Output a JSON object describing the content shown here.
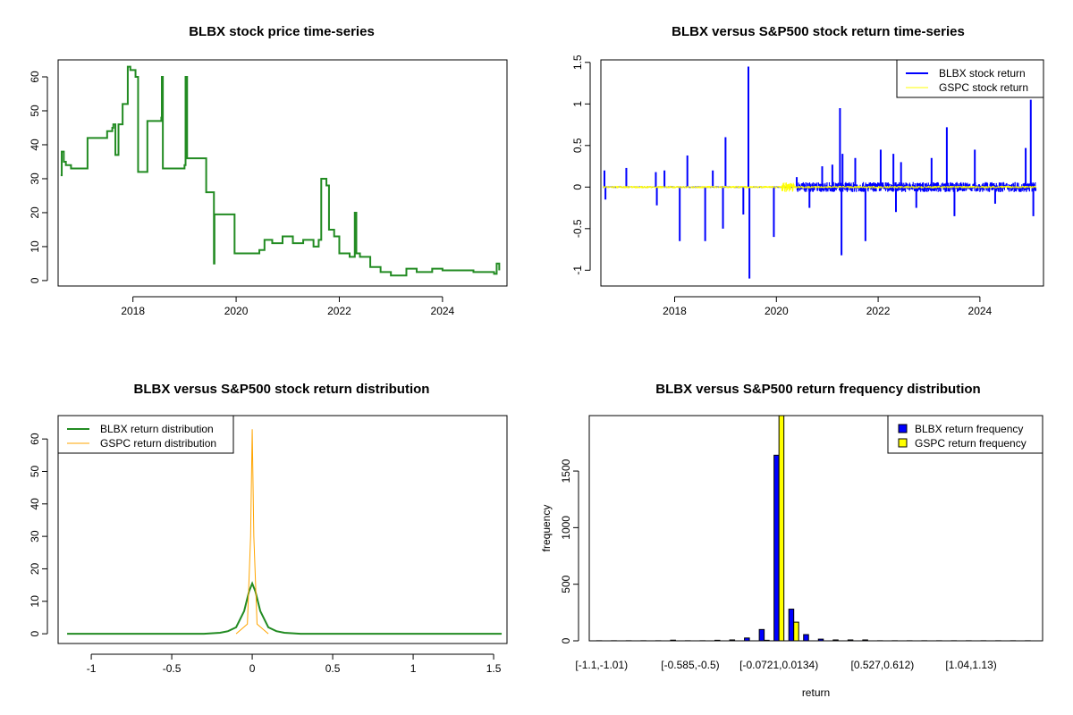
{
  "chart_data": [
    {
      "type": "line",
      "title": "BLBX stock price time-series",
      "xlabel": "",
      "ylabel": "",
      "xlim": [
        2016.55,
        2025.25
      ],
      "ylim": [
        -1.6,
        65
      ],
      "xticks": [
        2018,
        2020,
        2022,
        2024
      ],
      "yticks": [
        0,
        10,
        20,
        30,
        40,
        50,
        60
      ],
      "color": "#228B22",
      "x": [
        2016.6,
        2016.62,
        2016.66,
        2016.7,
        2016.8,
        2017.1,
        2017.12,
        2017.45,
        2017.5,
        2017.6,
        2017.62,
        2017.64,
        2017.66,
        2017.72,
        2017.8,
        2017.9,
        2017.95,
        2018.05,
        2018.1,
        2018.15,
        2018.28,
        2018.3,
        2018.55,
        2018.56,
        2018.58,
        2018.6,
        2019.0,
        2019.02,
        2019.05,
        2019.4,
        2019.42,
        2019.55,
        2019.57,
        2019.58,
        2019.96,
        2019.97,
        2020.4,
        2020.45,
        2020.55,
        2020.7,
        2020.9,
        2021.1,
        2021.3,
        2021.5,
        2021.6,
        2021.65,
        2021.75,
        2021.8,
        2021.9,
        2022.0,
        2022.2,
        2022.3,
        2022.33,
        2022.4,
        2022.6,
        2022.8,
        2023.0,
        2023.3,
        2023.5,
        2023.8,
        2024.0,
        2024.3,
        2024.6,
        2025.0,
        2025.05,
        2025.1
      ],
      "y": [
        31,
        38,
        35,
        34,
        33,
        33,
        42,
        42,
        44,
        45,
        46,
        46,
        37,
        46,
        52,
        63,
        62,
        60,
        32,
        32,
        47,
        47,
        48,
        60,
        33,
        33,
        34,
        60,
        36,
        36,
        26,
        26,
        5,
        19.5,
        19.5,
        8,
        8,
        9,
        12,
        11,
        13,
        11,
        12,
        10,
        12,
        30,
        28,
        15,
        13,
        8,
        7,
        20,
        8,
        7,
        4,
        2.5,
        1.5,
        3.5,
        2.5,
        3.5,
        3,
        3,
        2.5,
        2,
        5,
        3
      ]
    },
    {
      "type": "line",
      "title": "BLBX versus S&P500 stock return time-series",
      "xlabel": "",
      "ylabel": "",
      "xlim": [
        2016.55,
        2025.25
      ],
      "ylim": [
        -1.19,
        1.53
      ],
      "xticks": [
        2018,
        2020,
        2022,
        2024
      ],
      "yticks": [
        -1.0,
        -0.5,
        0.0,
        0.5,
        1.0,
        1.5
      ],
      "legend": {
        "position": "top-right",
        "entries": [
          "BLBX stock return",
          "GSPC stock return"
        ]
      },
      "series": [
        {
          "name": "BLBX stock return",
          "color": "#0000FF",
          "spikes_x": [
            2016.62,
            2016.64,
            2017.05,
            2017.63,
            2017.65,
            2017.8,
            2018.1,
            2018.25,
            2018.6,
            2018.75,
            2018.95,
            2019.0,
            2019.35,
            2019.45,
            2019.47,
            2019.95,
            2020.4,
            2020.65,
            2020.9,
            2021.1,
            2021.25,
            2021.28,
            2021.3,
            2021.55,
            2021.75,
            2022.05,
            2022.3,
            2022.35,
            2022.45,
            2022.75,
            2023.05,
            2023.35,
            2023.5,
            2023.9,
            2024.3,
            2024.9,
            2025.0,
            2025.05
          ],
          "spikes_y": [
            0.2,
            -0.15,
            0.23,
            0.18,
            -0.22,
            0.2,
            -0.65,
            0.38,
            -0.65,
            0.2,
            -0.5,
            0.6,
            -0.33,
            1.45,
            -1.1,
            -0.6,
            0.12,
            -0.25,
            0.25,
            0.27,
            0.95,
            -0.82,
            0.4,
            0.35,
            -0.65,
            0.45,
            0.4,
            -0.3,
            0.3,
            -0.25,
            0.35,
            0.72,
            -0.35,
            0.45,
            -0.2,
            0.47,
            1.05,
            -0.35
          ]
        },
        {
          "name": "GSPC stock return",
          "color": "#FFFF00",
          "amplitude": 0.03
        }
      ]
    },
    {
      "type": "line",
      "title": "BLBX versus S&P500 stock return distribution",
      "xlabel": "",
      "ylabel": "",
      "xlim": [
        -1.206,
        1.583
      ],
      "ylim": [
        -3,
        67.2
      ],
      "xticks": [
        -1.0,
        -0.5,
        0.0,
        0.5,
        1.0,
        1.5
      ],
      "yticks": [
        0,
        10,
        20,
        30,
        40,
        50,
        60
      ],
      "legend": {
        "position": "top-left",
        "entries": [
          "BLBX return distribution",
          "GSPC return distribution"
        ]
      },
      "series": [
        {
          "name": "BLBX return distribution",
          "color": "#228B22",
          "x": [
            -1.15,
            -0.3,
            -0.2,
            -0.15,
            -0.1,
            -0.05,
            -0.02,
            0,
            0.02,
            0.05,
            0.1,
            0.15,
            0.2,
            0.3,
            1.55
          ],
          "y": [
            0,
            0,
            0.3,
            0.8,
            2,
            7,
            13,
            15.5,
            13,
            7,
            2,
            0.8,
            0.3,
            0,
            0
          ]
        },
        {
          "name": "GSPC return distribution",
          "color": "#FFA500",
          "x": [
            -0.1,
            -0.03,
            -0.01,
            0,
            0.01,
            0.03,
            0.1
          ],
          "y": [
            0,
            3,
            30,
            63,
            30,
            3,
            0
          ]
        }
      ]
    },
    {
      "type": "bar",
      "title": "BLBX versus S&P500 return frequency distribution",
      "xlabel": "return",
      "ylabel": "frequency",
      "ylim": [
        0,
        1990
      ],
      "yticks": [
        0,
        500,
        1000,
        1500
      ],
      "tick_labels": {
        "0": "[-1.1,-1.01)",
        "6": "[-0.585,-0.5)",
        "12": "[-0.0721,0.0134)",
        "19": "[0.527,0.612)",
        "25": "[1.04,1.13)"
      },
      "legend": {
        "position": "top-right",
        "entries": [
          "BLBX return frequency",
          "GSPC return frequency"
        ]
      },
      "series": [
        {
          "name": "BLBX return frequency",
          "color": "#0000FF",
          "values": [
            1,
            1,
            1,
            1,
            1,
            6,
            1,
            1,
            5,
            8,
            25,
            100,
            1640,
            280,
            55,
            15,
            8,
            8,
            8,
            1,
            1,
            1,
            1,
            1,
            1,
            1,
            1,
            1,
            1,
            1
          ]
        },
        {
          "name": "GSPC return frequency",
          "color": "#FFFF00",
          "values": [
            0,
            0,
            0,
            0,
            0,
            0,
            0,
            0,
            0,
            0,
            0,
            5,
            2030,
            165,
            0,
            0,
            0,
            0,
            0,
            0,
            0,
            0,
            0,
            0,
            0,
            0,
            0,
            0,
            0,
            0
          ]
        }
      ]
    }
  ]
}
